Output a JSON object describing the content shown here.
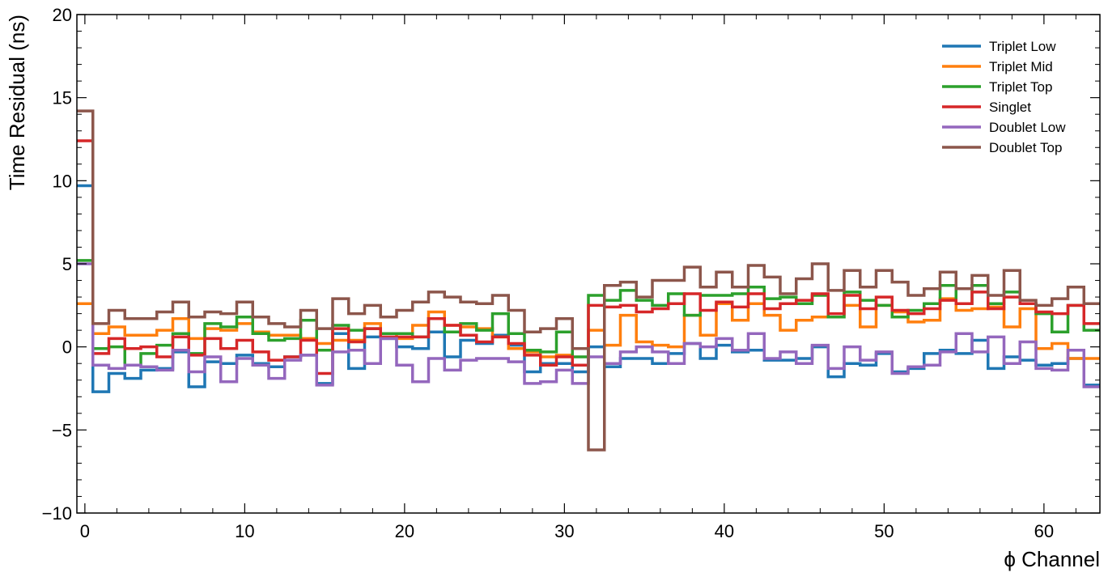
{
  "chart_data": {
    "type": "line",
    "drawstyle": "steps",
    "xlabel": "ϕ Channel",
    "ylabel": "Time Residual (ns)",
    "xlim": [
      -0.5,
      63.5
    ],
    "ylim": [
      -10,
      20
    ],
    "xticks": [
      0,
      10,
      20,
      30,
      40,
      50,
      60
    ],
    "yticks": [
      -10,
      -5,
      0,
      5,
      10,
      15,
      20
    ],
    "ytick_labels": [
      "−10",
      "−5",
      "0",
      "5",
      "10",
      "15",
      "20"
    ],
    "legend_position": "top-right",
    "x": [
      0,
      1,
      2,
      3,
      4,
      5,
      6,
      7,
      8,
      9,
      10,
      11,
      12,
      13,
      14,
      15,
      16,
      17,
      18,
      19,
      20,
      21,
      22,
      23,
      24,
      25,
      26,
      27,
      28,
      29,
      30,
      31,
      32,
      33,
      34,
      35,
      36,
      37,
      38,
      39,
      40,
      41,
      42,
      43,
      44,
      45,
      46,
      47,
      48,
      49,
      50,
      51,
      52,
      53,
      54,
      55,
      56,
      57,
      58,
      59,
      60,
      61,
      62,
      63
    ],
    "series": [
      {
        "name": "Triplet Low",
        "color": "#1f77b4",
        "values": [
          9.7,
          -2.7,
          -1.6,
          -1.9,
          -1.4,
          -1.3,
          -0.3,
          -2.4,
          -0.9,
          -1.0,
          -0.5,
          -1.0,
          -1.2,
          -0.6,
          -0.5,
          -2.2,
          0.8,
          -1.3,
          0.6,
          0.5,
          0.0,
          -0.1,
          0.9,
          -0.6,
          0.4,
          0.2,
          0.7,
          0.1,
          -1.5,
          -1.0,
          -1.0,
          -1.5,
          0.0,
          -1.2,
          -0.7,
          -0.7,
          -1.0,
          -0.4,
          0.2,
          -0.7,
          0.1,
          -0.3,
          -0.2,
          -0.8,
          -0.8,
          -0.7,
          0.0,
          -1.8,
          -1.0,
          -1.1,
          -0.4,
          -1.5,
          -1.3,
          -0.4,
          -0.2,
          -0.4,
          0.4,
          -1.3,
          -0.6,
          -0.8,
          -1.1,
          -1.0,
          -0.7,
          -2.3
        ]
      },
      {
        "name": "Triplet Mid",
        "color": "#ff7f0e",
        "values": [
          2.6,
          0.8,
          1.2,
          0.7,
          0.7,
          1.0,
          1.7,
          0.5,
          1.1,
          1.0,
          1.4,
          0.9,
          0.7,
          0.7,
          0.5,
          0.2,
          0.4,
          0.4,
          1.4,
          0.8,
          0.5,
          1.3,
          2.1,
          1.3,
          1.2,
          1.1,
          0.6,
          -0.1,
          -0.3,
          -0.6,
          -0.5,
          -0.1,
          1.0,
          0.1,
          1.9,
          0.3,
          0.1,
          0.0,
          1.9,
          0.7,
          2.6,
          1.6,
          2.6,
          1.9,
          1.0,
          1.6,
          1.8,
          1.8,
          2.5,
          1.2,
          2.5,
          2.1,
          1.5,
          1.6,
          2.9,
          2.2,
          2.3,
          2.4,
          1.2,
          2.3,
          -0.1,
          0.2,
          -0.7,
          -0.7
        ]
      },
      {
        "name": "Triplet Top",
        "color": "#2ca02c",
        "values": [
          5.2,
          -0.1,
          0.0,
          -1.1,
          -0.4,
          0.1,
          0.8,
          -0.4,
          1.4,
          1.2,
          1.8,
          0.8,
          0.4,
          0.5,
          1.6,
          -0.2,
          1.3,
          1.0,
          1.1,
          0.8,
          0.8,
          0.6,
          1.7,
          0.9,
          1.4,
          1.0,
          2.0,
          0.8,
          -0.2,
          -0.3,
          0.9,
          -0.6,
          3.1,
          2.8,
          3.4,
          2.8,
          2.5,
          3.2,
          1.9,
          3.1,
          3.1,
          3.2,
          3.6,
          2.9,
          3.0,
          2.6,
          3.1,
          1.8,
          3.3,
          2.8,
          2.5,
          1.8,
          2.2,
          2.6,
          3.7,
          2.6,
          3.7,
          2.6,
          3.3,
          2.6,
          2.0,
          0.9,
          2.5,
          1.0
        ]
      },
      {
        "name": "Singlet",
        "color": "#d62728",
        "values": [
          12.4,
          -0.4,
          0.5,
          -0.1,
          0.0,
          -0.6,
          0.6,
          -0.5,
          0.5,
          -0.1,
          0.4,
          -0.3,
          -0.8,
          -0.6,
          0.4,
          -1.6,
          1.1,
          0.3,
          1.1,
          0.6,
          0.6,
          0.6,
          1.7,
          1.3,
          0.7,
          0.3,
          0.6,
          0.2,
          -0.5,
          -1.1,
          -0.6,
          -1.1,
          2.5,
          2.4,
          2.5,
          2.1,
          2.3,
          2.6,
          3.2,
          2.2,
          2.7,
          2.4,
          3.2,
          2.3,
          2.6,
          2.8,
          3.2,
          2.0,
          3.1,
          2.3,
          3.0,
          2.2,
          2.0,
          2.3,
          2.8,
          2.6,
          3.3,
          2.3,
          3.0,
          2.6,
          2.1,
          2.0,
          2.5,
          1.4
        ]
      },
      {
        "name": "Doublet Low",
        "color": "#9467bd",
        "values": [
          5.0,
          -1.1,
          -1.3,
          -1.1,
          -1.2,
          -1.4,
          -0.2,
          -1.5,
          -0.6,
          -2.1,
          -0.7,
          -1.1,
          -1.9,
          -0.8,
          -0.5,
          -2.3,
          -0.3,
          -0.2,
          -1.0,
          0.5,
          -1.1,
          -2.1,
          -0.7,
          -1.4,
          -0.8,
          -0.7,
          -0.7,
          -0.9,
          -2.2,
          -2.1,
          -1.4,
          -2.2,
          -0.6,
          -1.0,
          -0.3,
          0.0,
          -0.3,
          -1.0,
          0.2,
          0.0,
          0.5,
          -0.2,
          0.8,
          -0.7,
          -0.3,
          -1.0,
          0.1,
          -1.3,
          0.0,
          -0.8,
          -0.3,
          -1.6,
          -1.2,
          -1.1,
          -0.3,
          0.8,
          -0.3,
          0.6,
          -1.0,
          0.3,
          -1.3,
          -1.4,
          -0.2,
          -2.4
        ]
      },
      {
        "name": "Doublet Top",
        "color": "#8c564b",
        "values": [
          14.2,
          1.4,
          2.2,
          1.7,
          1.7,
          2.1,
          2.7,
          1.8,
          2.1,
          2.0,
          2.7,
          1.8,
          1.4,
          1.2,
          2.2,
          1.1,
          2.9,
          2.0,
          2.5,
          1.8,
          2.2,
          2.7,
          3.3,
          3.0,
          2.7,
          2.6,
          3.1,
          2.2,
          0.9,
          1.1,
          1.7,
          -0.1,
          -6.2,
          3.7,
          3.9,
          3.0,
          4.0,
          4.0,
          4.8,
          3.6,
          4.5,
          3.6,
          4.9,
          4.2,
          3.2,
          4.1,
          5.0,
          3.4,
          4.6,
          3.6,
          4.6,
          3.9,
          3.1,
          3.5,
          4.5,
          3.5,
          4.3,
          3.1,
          4.6,
          2.8,
          2.5,
          2.9,
          3.6,
          2.6
        ]
      }
    ]
  }
}
